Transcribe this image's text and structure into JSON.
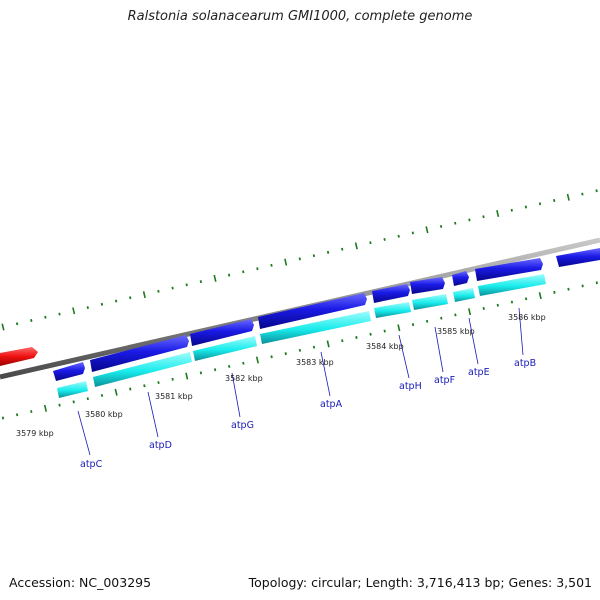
{
  "title": "Ralstonia solanacearum GMI1000, complete genome",
  "footer": {
    "accession": "Accession: NC_003295",
    "stats": "Topology: circular; Length: 3,716,413 bp; Genes: 3,501"
  },
  "colors": {
    "backbone": "#7a7a7a",
    "gene_forward": "#1a1ae6",
    "cds": "#19ecec",
    "other_feature": "#ee1111",
    "tick": "#1d7a1d",
    "gene_label": "#1a1ab8"
  },
  "scale_labels": [
    "3579 kbp",
    "3580 kbp",
    "3581 kbp",
    "3582 kbp",
    "3583 kbp",
    "3584 kbp",
    "3585 kbp",
    "3586 kbp"
  ],
  "gene_labels": [
    "atpC",
    "atpD",
    "atpG",
    "atpA",
    "atpH",
    "atpF",
    "atpE",
    "atpB"
  ]
}
